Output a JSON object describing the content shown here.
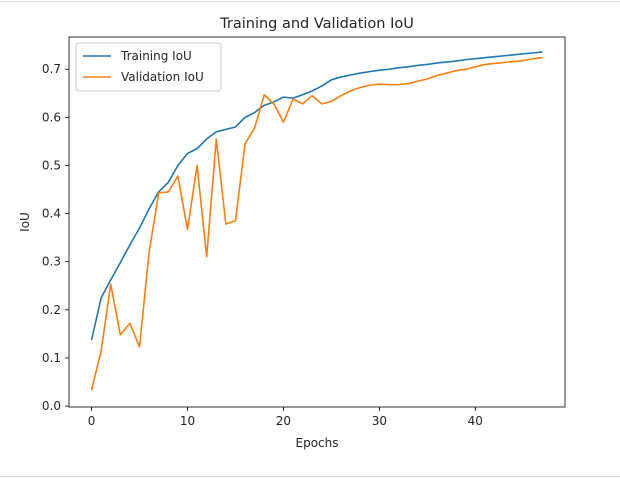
{
  "chart_data": {
    "type": "line",
    "title": "Training and Validation IoU",
    "xlabel": "Epochs",
    "ylabel": "IoU",
    "xlim": [
      -2.35,
      49.35
    ],
    "ylim": [
      -0.002,
      0.767
    ],
    "xticks": [
      0,
      10,
      20,
      30,
      40
    ],
    "yticks": [
      0.0,
      0.1,
      0.2,
      0.3,
      0.4,
      0.5,
      0.6,
      0.7
    ],
    "grid": false,
    "legend": "top-left",
    "series": [
      {
        "name": "Training IoU",
        "color": "#1f77b4",
        "x": [
          0,
          1,
          2,
          3,
          4,
          5,
          6,
          7,
          8,
          9,
          10,
          11,
          12,
          13,
          14,
          15,
          16,
          17,
          18,
          19,
          20,
          21,
          22,
          23,
          24,
          25,
          26,
          27,
          28,
          29,
          30,
          31,
          32,
          33,
          34,
          35,
          36,
          37,
          38,
          39,
          40,
          41,
          42,
          43,
          44,
          45,
          46,
          47
        ],
        "values": [
          0.137,
          0.225,
          0.262,
          0.298,
          0.335,
          0.37,
          0.41,
          0.445,
          0.465,
          0.5,
          0.525,
          0.535,
          0.555,
          0.57,
          0.575,
          0.58,
          0.6,
          0.61,
          0.625,
          0.632,
          0.642,
          0.64,
          0.647,
          0.655,
          0.665,
          0.678,
          0.684,
          0.688,
          0.692,
          0.695,
          0.698,
          0.7,
          0.703,
          0.705,
          0.708,
          0.71,
          0.713,
          0.715,
          0.717,
          0.72,
          0.722,
          0.724,
          0.726,
          0.728,
          0.73,
          0.732,
          0.734,
          0.736
        ]
      },
      {
        "name": "Validation IoU",
        "color": "#ff7f0e",
        "x": [
          0,
          1,
          2,
          3,
          4,
          5,
          6,
          7,
          8,
          9,
          10,
          11,
          12,
          13,
          14,
          15,
          16,
          17,
          18,
          19,
          20,
          21,
          22,
          23,
          24,
          25,
          26,
          27,
          28,
          29,
          30,
          31,
          32,
          33,
          34,
          35,
          36,
          37,
          38,
          39,
          40,
          41,
          42,
          43,
          44,
          45,
          46,
          47
        ],
        "values": [
          0.033,
          0.115,
          0.253,
          0.148,
          0.172,
          0.123,
          0.32,
          0.443,
          0.445,
          0.478,
          0.367,
          0.5,
          0.31,
          0.555,
          0.378,
          0.385,
          0.545,
          0.578,
          0.647,
          0.628,
          0.59,
          0.638,
          0.628,
          0.645,
          0.628,
          0.633,
          0.645,
          0.655,
          0.662,
          0.667,
          0.669,
          0.668,
          0.668,
          0.67,
          0.675,
          0.68,
          0.687,
          0.692,
          0.697,
          0.7,
          0.705,
          0.71,
          0.712,
          0.714,
          0.716,
          0.718,
          0.722,
          0.724
        ]
      }
    ]
  }
}
